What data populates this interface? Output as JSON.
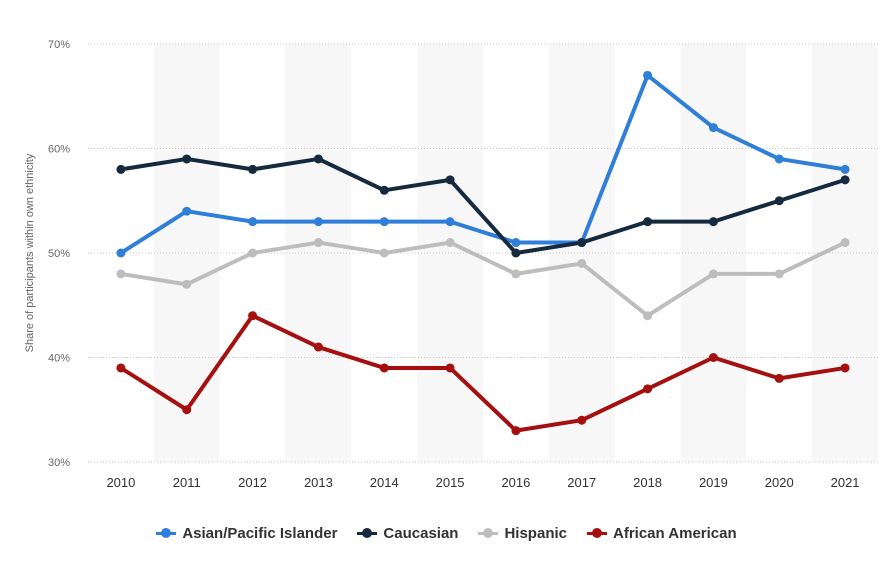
{
  "chart_data": {
    "type": "line",
    "ylabel": "Share of participants within own ethnicity",
    "xlabel": "",
    "categories": [
      "2010",
      "2011",
      "2012",
      "2013",
      "2014",
      "2015",
      "2016",
      "2017",
      "2018",
      "2019",
      "2020",
      "2021"
    ],
    "ylim": [
      30,
      70
    ],
    "yticks": [
      30,
      40,
      50,
      60,
      70
    ],
    "ytick_labels": [
      "30%",
      "40%",
      "50%",
      "60%",
      "70%"
    ],
    "grid": "horizontal dotted",
    "legend_position": "bottom-center",
    "series": [
      {
        "name": "Asian/Pacific Islander",
        "color": "#2f7ed8",
        "values": [
          50,
          54,
          53,
          53,
          53,
          53,
          51,
          51,
          67,
          62,
          59,
          58
        ]
      },
      {
        "name": "Caucasian",
        "color": "#152a3f",
        "values": [
          58,
          59,
          58,
          59,
          56,
          57,
          50,
          51,
          53,
          53,
          55,
          57
        ]
      },
      {
        "name": "Hispanic",
        "color": "#bdbdbd",
        "values": [
          48,
          47,
          50,
          51,
          50,
          51,
          48,
          49,
          44,
          48,
          48,
          51
        ]
      },
      {
        "name": "African American",
        "color": "#a50f0f",
        "values": [
          39,
          35,
          44,
          41,
          39,
          39,
          33,
          34,
          37,
          40,
          38,
          39
        ]
      }
    ]
  }
}
